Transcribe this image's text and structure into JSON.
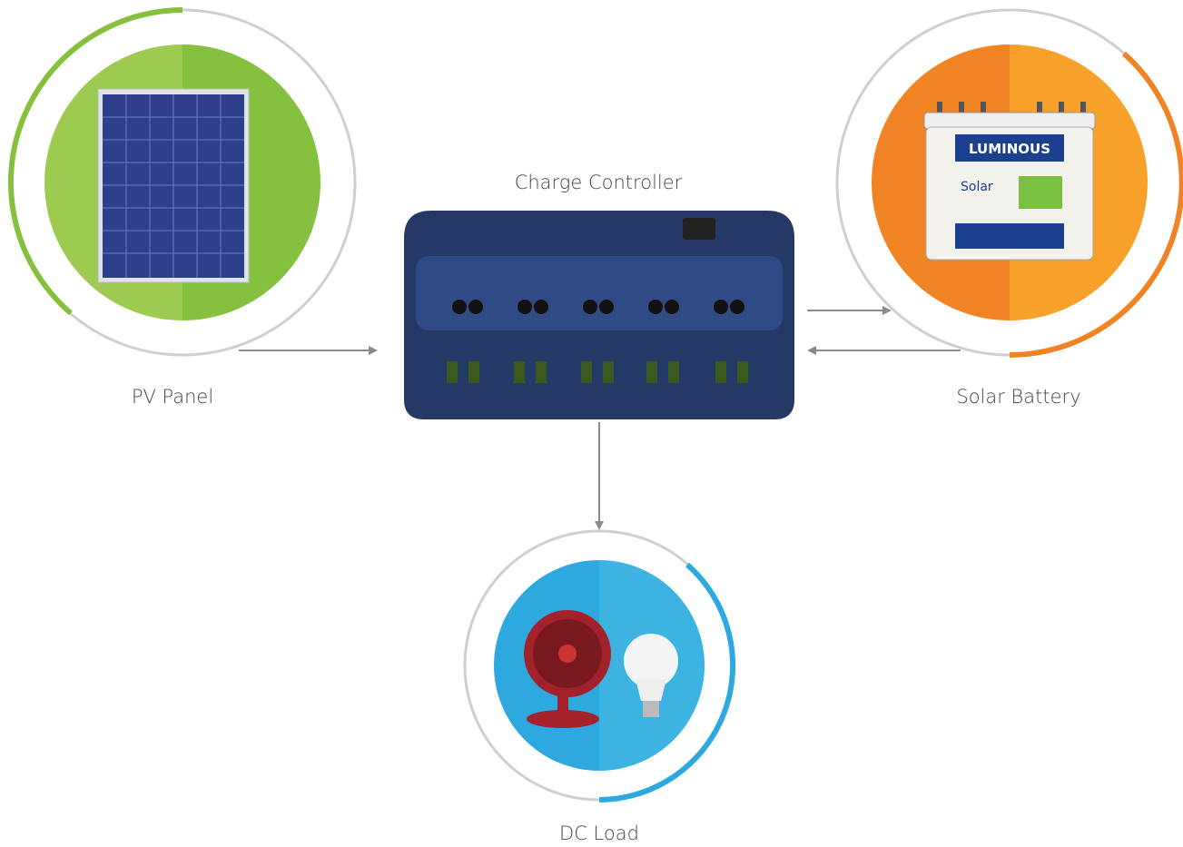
{
  "nodes": [
    {
      "label": "Charge Controller"
    },
    {
      "label": "PV Panel"
    },
    {
      "label": "Solar Battery",
      "brand": "LUMINOUS",
      "product": "Solar"
    },
    {
      "label": "DC Load"
    }
  ]
}
